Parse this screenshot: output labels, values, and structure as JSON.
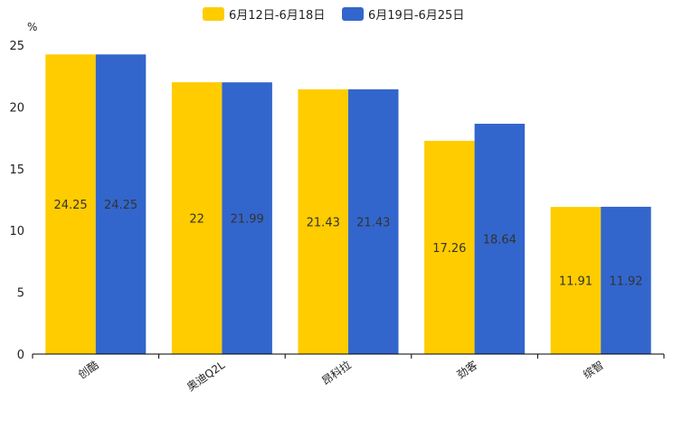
{
  "chart_data": {
    "type": "bar",
    "title": "",
    "ylabel": "%",
    "xlabel": "",
    "ylim": [
      0,
      25
    ],
    "yticks": [
      0,
      5,
      10,
      15,
      20,
      25
    ],
    "categories": [
      "创酷",
      "奥迪Q2L",
      "昂科拉",
      "劲客",
      "缤智"
    ],
    "series": [
      {
        "name": "6月12日-6月18日",
        "color": "#FFCC00",
        "values": [
          24.25,
          22,
          21.43,
          17.26,
          11.91
        ]
      },
      {
        "name": "6月19日-6月25日",
        "color": "#3366CC",
        "values": [
          24.25,
          21.99,
          21.43,
          18.64,
          11.92
        ]
      }
    ],
    "legend_position": "top-center"
  }
}
